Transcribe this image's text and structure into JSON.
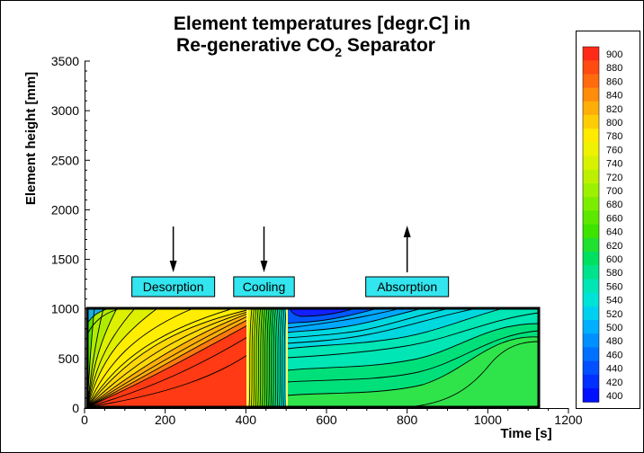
{
  "chart_data": {
    "type": "heatmap",
    "title_line1": "Element temperatures [degr.C] in",
    "title_line2_pre": "Re-generative CO",
    "title_line2_sub": "2",
    "title_line2_post": " Separator",
    "xlabel": "Time [s]",
    "ylabel": "Element height [mm]",
    "xlim": [
      0,
      1200
    ],
    "ylim": [
      0,
      3500
    ],
    "x_ticks": [
      "0",
      "200",
      "400",
      "600",
      "800",
      "1000",
      "1200"
    ],
    "y_ticks": [
      "0",
      "500",
      "1000",
      "1500",
      "2000",
      "2500",
      "3000",
      "3500"
    ],
    "domain": {
      "x": [
        0,
        1125
      ],
      "y": [
        0,
        1000
      ]
    },
    "phase_boundaries": [
      400,
      500
    ],
    "phases": [
      {
        "label": "Desorption",
        "x_center": 220,
        "arrow": "down"
      },
      {
        "label": "Cooling",
        "x_center": 445,
        "arrow": "down"
      },
      {
        "label": "Absorption",
        "x_center": 800,
        "arrow": "up"
      }
    ],
    "colorbar": {
      "levels": [
        "900",
        "880",
        "860",
        "840",
        "820",
        "800",
        "780",
        "760",
        "740",
        "720",
        "700",
        "680",
        "660",
        "640",
        "620",
        "600",
        "580",
        "560",
        "540",
        "520",
        "500",
        "480",
        "460",
        "440",
        "420",
        "400"
      ],
      "colors": [
        "#ff2a18",
        "#ff4a12",
        "#ff6a0e",
        "#ff8c0a",
        "#ffae08",
        "#ffcd06",
        "#ffea00",
        "#eef200",
        "#d6f200",
        "#bcf000",
        "#9df000",
        "#7ded00",
        "#5ce800",
        "#3ee400",
        "#20e030",
        "#00e060",
        "#00e38c",
        "#00e6b4",
        "#00e4d8",
        "#00d0f0",
        "#00b0ff",
        "#0090ff",
        "#0070ff",
        "#0050ff",
        "#0030ff",
        "#0010ff"
      ],
      "zmin": 400,
      "zmax": 900
    }
  }
}
